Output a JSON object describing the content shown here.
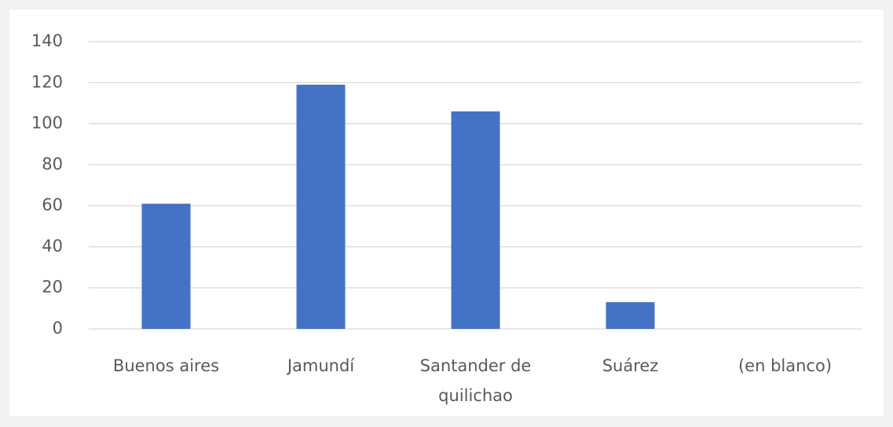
{
  "chart_data": {
    "type": "bar",
    "categories": [
      "Buenos aires",
      "Jamundí",
      "Santander de quilichao",
      "Suárez",
      "(en blanco)"
    ],
    "values": [
      61,
      119,
      106,
      13,
      null
    ],
    "color": "#4472c4",
    "ylim": [
      0,
      140
    ],
    "yticks": [
      0,
      20,
      40,
      60,
      80,
      100,
      120,
      140
    ],
    "grid": true
  }
}
